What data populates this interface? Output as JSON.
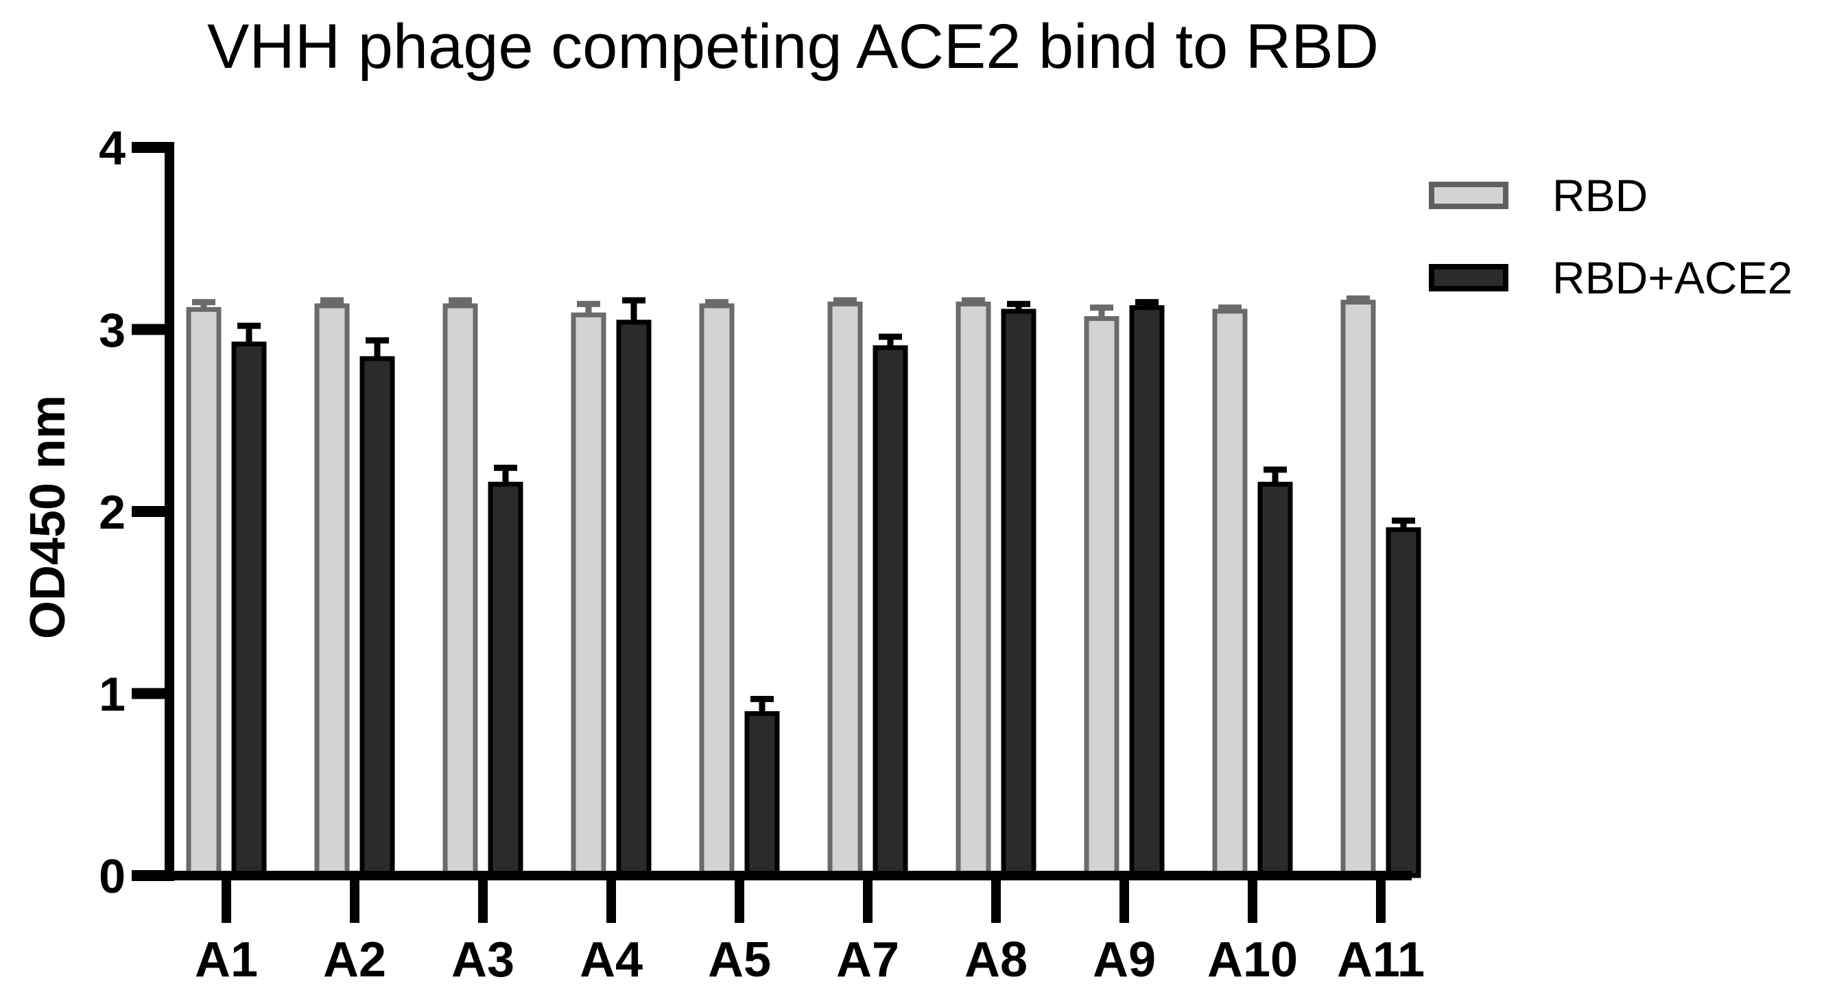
{
  "chart_data": {
    "type": "bar",
    "title": "VHH phage competing ACE2 bind to RBD",
    "ylabel": "OD450 nm",
    "xlabel": "",
    "ylim": [
      0,
      4
    ],
    "yticks": [
      0,
      1,
      2,
      3,
      4
    ],
    "grid": false,
    "legend_position": "top-right",
    "categories": [
      "A1",
      "A2",
      "A3",
      "A4",
      "A5",
      "A7",
      "A8",
      "A9",
      "A10",
      "A11"
    ],
    "series": [
      {
        "name": "RBD",
        "fill": "#d3d3d3",
        "border": "#6a6a6a",
        "error_color": "#6a6a6a",
        "values": [
          3.11,
          3.13,
          3.13,
          3.08,
          3.13,
          3.14,
          3.14,
          3.06,
          3.1,
          3.15
        ],
        "errors": [
          0.04,
          0.03,
          0.03,
          0.06,
          0.02,
          0.02,
          0.02,
          0.06,
          0.02,
          0.02
        ]
      },
      {
        "name": "RBD+ACE2",
        "fill": "#2b2b2b",
        "border": "#000000",
        "error_color": "#000000",
        "values": [
          2.92,
          2.84,
          2.15,
          3.04,
          0.89,
          2.9,
          3.1,
          3.12,
          2.15,
          1.9
        ],
        "errors": [
          0.1,
          0.1,
          0.09,
          0.12,
          0.08,
          0.06,
          0.04,
          0.03,
          0.08,
          0.05
        ]
      }
    ],
    "axis_color": "#000000"
  }
}
